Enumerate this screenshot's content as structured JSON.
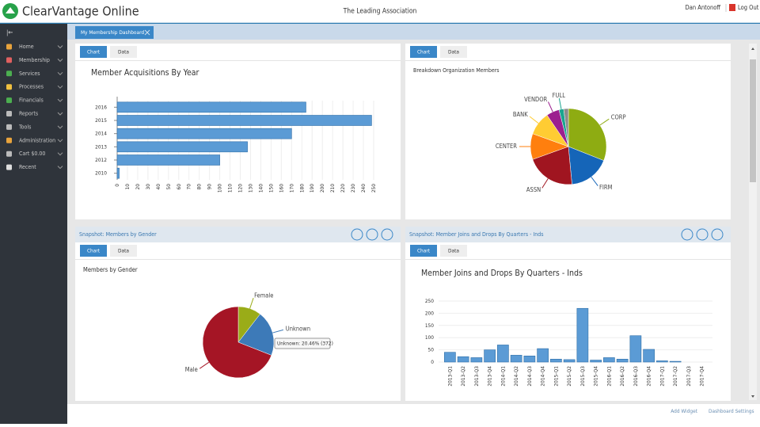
{
  "header": {
    "app_name": "ClearVantage Online",
    "organization": "The Leading Association",
    "user": "Dan Antonoff",
    "logout": "Log Out"
  },
  "sidebar": {
    "items": [
      "Home",
      "Membership",
      "Services",
      "Processes",
      "Financials",
      "Reports",
      "Tools",
      "Administration",
      "Cart $0.00",
      "Recent"
    ]
  },
  "dashboard_tab": "My Membership Dashboard",
  "widgets": [
    {
      "tabs": [
        "Chart",
        "Data"
      ]
    },
    {
      "tabs": [
        "Chart",
        "Data"
      ]
    },
    {
      "header": "Snapshot: Members by Gender",
      "tabs": [
        "Chart",
        "Data"
      ]
    },
    {
      "header": "Snapshot: Member Joins and Drops By Quarters - Inds",
      "tabs": [
        "Chart",
        "Data"
      ]
    }
  ],
  "chart_data": [
    {
      "type": "hbar",
      "title": "Member Acquisitions By Year",
      "categories": [
        "2016",
        "2015",
        "2014",
        "2013",
        "2012",
        "2010"
      ],
      "values": [
        184,
        248,
        170,
        127,
        100,
        2
      ],
      "color": "#5b9bd5",
      "xlim": [
        0,
        250
      ],
      "xticks": [
        0,
        10,
        20,
        30,
        40,
        50,
        60,
        70,
        80,
        90,
        100,
        110,
        120,
        130,
        140,
        150,
        160,
        170,
        180,
        190,
        200,
        210,
        220,
        230,
        240,
        250
      ],
      "grid": true
    },
    {
      "type": "pie",
      "title": "Breakdown Organization Members",
      "categories": [
        "CORP",
        "FIRM",
        "ASSN",
        "CENTER",
        "BANK",
        "VENDOR",
        "FULL",
        null
      ],
      "values": [
        31,
        17.5,
        21,
        11,
        10,
        5.5,
        2,
        2
      ],
      "colors": [
        "#8eac12",
        "#1565b8",
        "#a01520",
        "#ff7f0e",
        "#ffcc33",
        "#9c1f8f",
        "#1aa58f",
        "#8c8c8c"
      ]
    },
    {
      "type": "pie",
      "title": "Members by Gender",
      "categories": [
        "Female",
        "Unknown",
        "Male"
      ],
      "values": [
        10.5,
        20.46,
        69.04
      ],
      "colors": [
        "#9aac18",
        "#3d7ab8",
        "#a51525"
      ],
      "tooltip": "Unknown: 20.46% (372)"
    },
    {
      "type": "bar",
      "title": "Member Joins and Drops By Quarters - Inds",
      "categories": [
        "2013-Q1",
        "2013-Q2",
        "2013-Q3",
        "2013-Q4",
        "2014-Q1",
        "2014-Q2",
        "2014-Q3",
        "2014-Q4",
        "2015-Q1",
        "2015-Q2",
        "2015-Q3",
        "2015-Q4",
        "2016-Q1",
        "2016-Q2",
        "2016-Q3",
        "2016-Q4",
        "2017-Q1",
        "2017-Q2",
        "2017-Q3",
        "2017-Q4"
      ],
      "values": [
        40,
        22,
        18,
        50,
        70,
        28,
        25,
        55,
        12,
        10,
        220,
        8,
        18,
        12,
        108,
        52,
        5,
        3,
        0,
        0
      ],
      "color": "#5b9bd5",
      "ylim": [
        0,
        250
      ],
      "yticks": [
        0,
        50,
        100,
        150,
        200,
        250
      ],
      "grid": true
    }
  ],
  "footer": {
    "actions": [
      "Add Widget",
      "Dashboard Settings"
    ]
  }
}
